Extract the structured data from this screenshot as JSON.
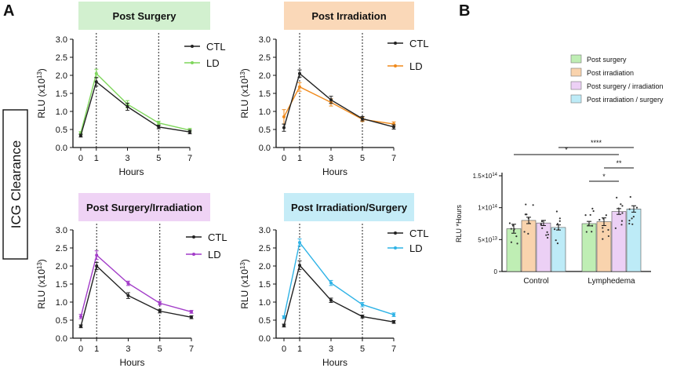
{
  "figure": {
    "panel_a_letter": "A",
    "panel_b_letter": "B",
    "side_label": "ICG Clearance"
  },
  "colors": {
    "ctl": "#222222",
    "ld_green": "#7fd65c",
    "ld_orange": "#f08a1c",
    "ld_purple": "#a23cc8",
    "ld_blue": "#2fb3e6",
    "title_green": "#d2f0cf",
    "title_orange": "#fad8b8",
    "title_purple": "#efd3f5",
    "title_blue": "#c5ecf7"
  },
  "chart_data": [
    {
      "type": "line",
      "title": "Post Surgery",
      "xlabel": "Hours",
      "ylabel": "RLU (x10",
      "ylabel_exp": "13",
      "ylabel_close": ")",
      "x": [
        0,
        1,
        3,
        5,
        7
      ],
      "xticks": [
        "0",
        "1",
        "3",
        "5",
        "7"
      ],
      "ylim": [
        0,
        3.0
      ],
      "yticks": [
        "0.0",
        "0.5",
        "1.0",
        "1.5",
        "2.0",
        "2.5",
        "3.0"
      ],
      "vlines": [
        1,
        5
      ],
      "series": [
        {
          "name": "CTL",
          "values": [
            0.33,
            1.82,
            1.13,
            0.57,
            0.43
          ],
          "err": [
            0.04,
            0.12,
            0.1,
            0.05,
            0.05
          ],
          "color": "#222222"
        },
        {
          "name": "LD",
          "values": [
            0.4,
            2.05,
            1.2,
            0.68,
            0.48
          ],
          "err": [
            0.04,
            0.12,
            0.1,
            0.05,
            0.05
          ],
          "color": "#7fd65c"
        }
      ]
    },
    {
      "type": "line",
      "title": "Post Irradiation",
      "xlabel": "Hours",
      "ylabel": "RLU (x10",
      "ylabel_exp": "13",
      "ylabel_close": ")",
      "x": [
        0,
        1,
        3,
        5,
        7
      ],
      "xticks": [
        "0",
        "1",
        "3",
        "5",
        "7"
      ],
      "ylim": [
        0,
        3.0
      ],
      "yticks": [
        "0.0",
        "0.5",
        "1.0",
        "1.5",
        "2.0",
        "2.5",
        "3.0"
      ],
      "vlines": [
        1,
        5
      ],
      "series": [
        {
          "name": "CTL",
          "values": [
            0.55,
            2.05,
            1.32,
            0.8,
            0.57
          ],
          "err": [
            0.1,
            0.1,
            0.1,
            0.06,
            0.06
          ],
          "color": "#222222"
        },
        {
          "name": "LD",
          "values": [
            0.85,
            1.68,
            1.25,
            0.78,
            0.65
          ],
          "err": [
            0.2,
            0.12,
            0.1,
            0.06,
            0.06
          ],
          "color": "#f08a1c"
        }
      ]
    },
    {
      "type": "line",
      "title": "Post Surgery/Irradiation",
      "xlabel": "Hours",
      "ylabel": "RLU (x10",
      "ylabel_exp": "13",
      "ylabel_close": ")",
      "x": [
        0,
        1,
        3,
        5,
        7
      ],
      "xticks": [
        "0",
        "1",
        "3",
        "5",
        "7"
      ],
      "ylim": [
        0,
        3.0
      ],
      "yticks": [
        "0.0",
        "0.5",
        "1.0",
        "1.5",
        "2.0",
        "2.5",
        "3.0"
      ],
      "vlines": [
        1,
        5
      ],
      "series": [
        {
          "name": "CTL",
          "values": [
            0.33,
            2.0,
            1.18,
            0.75,
            0.58
          ],
          "err": [
            0.04,
            0.1,
            0.08,
            0.05,
            0.04
          ],
          "color": "#222222"
        },
        {
          "name": "LD",
          "values": [
            0.6,
            2.3,
            1.52,
            0.97,
            0.73
          ],
          "err": [
            0.06,
            0.12,
            0.06,
            0.05,
            0.04
          ],
          "color": "#a23cc8"
        }
      ]
    },
    {
      "type": "line",
      "title": "Post Irradiation/Surgery",
      "xlabel": "Hours",
      "ylabel": "RLU (x10",
      "ylabel_exp": "13",
      "ylabel_close": ")",
      "x": [
        0,
        1,
        3,
        5,
        7
      ],
      "xticks": [
        "0",
        "1",
        "3",
        "5",
        "7"
      ],
      "ylim": [
        0,
        3.0
      ],
      "yticks": [
        "0.0",
        "0.5",
        "1.0",
        "1.5",
        "2.0",
        "2.5",
        "3.0"
      ],
      "vlines": [
        1,
        5
      ],
      "series": [
        {
          "name": "CTL",
          "values": [
            0.35,
            2.02,
            1.05,
            0.6,
            0.45
          ],
          "err": [
            0.04,
            0.12,
            0.06,
            0.04,
            0.04
          ],
          "color": "#222222"
        },
        {
          "name": "LD",
          "values": [
            0.58,
            2.65,
            1.53,
            0.93,
            0.65
          ],
          "err": [
            0.04,
            0.1,
            0.07,
            0.06,
            0.05
          ],
          "color": "#2fb3e6"
        }
      ]
    },
    {
      "type": "bar",
      "title": "",
      "ylabel": "RLU *Hours",
      "categories": [
        "Control",
        "Lymphedema"
      ],
      "ylim": [
        0,
        150000000000000
      ],
      "ytick_values": [
        0,
        50000000000000,
        100000000000000,
        150000000000000
      ],
      "yticks": [
        "0",
        "5×10",
        "1×10",
        "1.5×10"
      ],
      "ytick_exps": [
        "",
        "13",
        "14",
        "14"
      ],
      "series": [
        {
          "name": "Post surgery",
          "color": "#bfeeb4",
          "values": [
            67000000000000,
            75000000000000
          ],
          "err": [
            7000000000000,
            3500000000000
          ]
        },
        {
          "name": "Post irradiation",
          "color": "#f9d3ad",
          "values": [
            80000000000000,
            78000000000000
          ],
          "err": [
            5000000000000,
            6000000000000
          ]
        },
        {
          "name": "Post surgery / irradiation",
          "color": "#ecd0f5",
          "values": [
            76000000000000,
            94000000000000
          ],
          "err": [
            4000000000000,
            4500000000000
          ]
        },
        {
          "name": "Post irradiation / surgery",
          "color": "#bdebf7",
          "values": [
            69000000000000,
            98000000000000
          ],
          "err": [
            4000000000000,
            5000000000000
          ]
        }
      ],
      "significance": [
        {
          "label": "****",
          "from_group": 0,
          "from_series": 3,
          "to_group": 1,
          "to_series": 3
        },
        {
          "label": "*",
          "from_group": 0,
          "from_series": 0,
          "to_group": 1,
          "to_series": 2
        },
        {
          "label": "**",
          "from_group": 1,
          "from_series": 1,
          "to_group": 1,
          "to_series": 3
        },
        {
          "label": "*",
          "from_group": 1,
          "from_series": 0,
          "to_group": 1,
          "to_series": 2
        }
      ]
    }
  ]
}
